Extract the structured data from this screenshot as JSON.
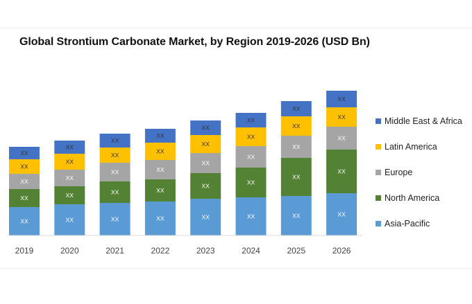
{
  "chart_data": {
    "type": "bar",
    "stacked": true,
    "title": "Global Strontium Carbonate Market, by Region 2019-2026 (USD Bn)",
    "xlabel": "",
    "ylabel": "",
    "categories": [
      "2019",
      "2020",
      "2021",
      "2022",
      "2023",
      "2024",
      "2025",
      "2026"
    ],
    "ylim": [
      0,
      215
    ],
    "grid": false,
    "legend_position": "right",
    "data_label_text": "XX",
    "series": [
      {
        "name": "Asia-Pacific",
        "color": "#5b9bd5",
        "values": [
          41,
          45,
          47,
          49,
          53,
          55,
          57,
          61
        ]
      },
      {
        "name": "North America",
        "color": "#548235",
        "values": [
          26,
          26,
          31,
          32,
          37,
          43,
          55,
          63
        ]
      },
      {
        "name": "Europe",
        "color": "#a5a5a5",
        "values": [
          22,
          24,
          27,
          28,
          29,
          31,
          32,
          33
        ]
      },
      {
        "name": "Latin America",
        "color": "#ffc000",
        "values": [
          21,
          23,
          22,
          25,
          26,
          27,
          28,
          28
        ]
      },
      {
        "name": "Middle East & Africa",
        "color": "#4472c4",
        "values": [
          18,
          19,
          20,
          20,
          21,
          21,
          22,
          24
        ]
      }
    ]
  }
}
